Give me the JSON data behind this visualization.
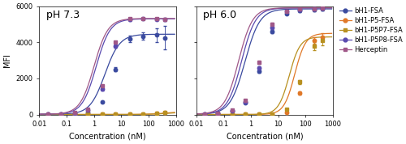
{
  "title_left": "pH 7.3",
  "title_right": "pH 6.0",
  "xlabel": "Concentration (nM)",
  "ylabel": "MFI",
  "ylim": [
    0,
    6000
  ],
  "yticks": [
    0,
    2000,
    4000,
    6000
  ],
  "xticks": [
    0.01,
    0.1,
    1,
    10,
    100,
    1000
  ],
  "xtick_labels": [
    "0.01",
    "0.1",
    "1",
    "10",
    "100",
    "1000"
  ],
  "legend_labels": [
    "bH1-FSA",
    "bH1-P5-FSA",
    "bH1-P5P7-FSA",
    "bH1-P5P8-FSA",
    "Herceptin"
  ],
  "colors": {
    "bH1-FSA": "#3A4A9F",
    "bH1-P5-FSA": "#E07828",
    "bH1-P5P7-FSA": "#B89020",
    "bH1-P5P8-FSA": "#5A4AAF",
    "Herceptin": "#A05888"
  },
  "markers": {
    "bH1-FSA": "o",
    "bH1-P5-FSA": "o",
    "bH1-P5P7-FSA": "s",
    "bH1-P5P8-FSA": "o",
    "Herceptin": "s"
  },
  "panel_left": {
    "bH1-FSA": {
      "x": [
        0.02,
        0.06,
        0.2,
        0.6,
        2,
        6,
        20,
        60,
        200,
        400
      ],
      "y": [
        20,
        30,
        50,
        100,
        700,
        2500,
        4200,
        4350,
        4400,
        4250
      ],
      "yerr": [
        8,
        8,
        15,
        25,
        60,
        120,
        180,
        220,
        380,
        650
      ],
      "ec50": 2.5,
      "ymax": 4450,
      "ymin": 15,
      "hill": 1.6
    },
    "bH1-P5-FSA": {
      "x": [
        0.02,
        0.06,
        0.2,
        0.6,
        2,
        6,
        20,
        60,
        200,
        400
      ],
      "y": [
        5,
        6,
        8,
        10,
        12,
        15,
        20,
        35,
        80,
        120
      ],
      "yerr": [
        2,
        2,
        2,
        3,
        3,
        4,
        5,
        6,
        10,
        15
      ],
      "ec50": 500,
      "ymax": 180,
      "ymin": 5,
      "hill": 1.2
    },
    "bH1-P5P7-FSA": {
      "x": [
        0.02,
        0.06,
        0.2,
        0.6,
        2,
        6,
        20,
        60,
        200,
        400
      ],
      "y": [
        5,
        6,
        8,
        10,
        12,
        14,
        18,
        30,
        65,
        110
      ],
      "yerr": [
        2,
        2,
        2,
        3,
        3,
        3,
        5,
        6,
        9,
        14
      ],
      "ec50": 600,
      "ymax": 150,
      "ymin": 5,
      "hill": 1.2
    },
    "bH1-P5P8-FSA": {
      "x": [
        0.02,
        0.06,
        0.2,
        0.6,
        2,
        6,
        20,
        60,
        200,
        400
      ],
      "y": [
        25,
        40,
        90,
        250,
        1400,
        3800,
        5250,
        5300,
        5280,
        5250
      ],
      "yerr": [
        5,
        8,
        15,
        25,
        60,
        80,
        50,
        50,
        60,
        80
      ],
      "ec50": 1.2,
      "ymax": 5300,
      "ymin": 20,
      "hill": 1.7
    },
    "Herceptin": {
      "x": [
        0.02,
        0.06,
        0.2,
        0.6,
        2,
        6,
        20,
        60,
        200,
        400
      ],
      "y": [
        28,
        45,
        100,
        280,
        1600,
        4000,
        5300,
        5320,
        5310,
        5290
      ],
      "yerr": [
        5,
        8,
        15,
        25,
        60,
        70,
        45,
        45,
        50,
        60
      ],
      "ec50": 1.0,
      "ymax": 5320,
      "ymin": 22,
      "hill": 1.7
    }
  },
  "panel_right": {
    "bH1-FSA": {
      "x": [
        0.02,
        0.06,
        0.2,
        0.6,
        2,
        6,
        20,
        60,
        200,
        400
      ],
      "y": [
        25,
        60,
        200,
        650,
        2400,
        4600,
        5600,
        5750,
        5800,
        5850
      ],
      "yerr": [
        5,
        10,
        20,
        40,
        80,
        100,
        60,
        60,
        70,
        90
      ],
      "ec50": 0.6,
      "ymax": 5850,
      "ymin": 20,
      "hill": 1.6
    },
    "bH1-P5-FSA": {
      "x": [
        0.02,
        0.06,
        0.2,
        0.6,
        2,
        6,
        20,
        60,
        200,
        400
      ],
      "y": [
        5,
        7,
        10,
        13,
        18,
        30,
        120,
        1200,
        4100,
        4300
      ],
      "yerr": [
        2,
        2,
        3,
        3,
        4,
        6,
        15,
        80,
        180,
        200
      ],
      "ec50": 40,
      "ymax": 4500,
      "ymin": 5,
      "hill": 2.2
    },
    "bH1-P5P7-FSA": {
      "x": [
        0.02,
        0.06,
        0.2,
        0.6,
        2,
        6,
        20,
        60,
        200,
        400
      ],
      "y": [
        5,
        7,
        10,
        13,
        18,
        45,
        280,
        1800,
        3800,
        4100
      ],
      "yerr": [
        2,
        2,
        3,
        3,
        4,
        7,
        25,
        100,
        220,
        250
      ],
      "ec50": 25,
      "ymax": 4300,
      "ymin": 5,
      "hill": 2.2
    },
    "bH1-P5P8-FSA": {
      "x": [
        0.02,
        0.06,
        0.2,
        0.6,
        2,
        6,
        20,
        60,
        200,
        400
      ],
      "y": [
        28,
        65,
        220,
        700,
        2600,
        4800,
        5700,
        5820,
        5860,
        5900
      ],
      "yerr": [
        5,
        10,
        20,
        40,
        80,
        90,
        55,
        55,
        60,
        75
      ],
      "ec50": 0.45,
      "ymax": 5900,
      "ymin": 22,
      "hill": 1.7
    },
    "Herceptin": {
      "x": [
        0.02,
        0.06,
        0.2,
        0.6,
        2,
        6,
        20,
        60,
        200,
        400
      ],
      "y": [
        32,
        75,
        250,
        800,
        2900,
        5000,
        5720,
        5830,
        5870,
        5900
      ],
      "yerr": [
        5,
        10,
        22,
        45,
        75,
        90,
        50,
        50,
        55,
        70
      ],
      "ec50": 0.35,
      "ymax": 5910,
      "ymin": 25,
      "hill": 1.7
    }
  },
  "background_color": "#ffffff",
  "title_fontsize": 9,
  "label_fontsize": 7,
  "tick_fontsize": 6,
  "legend_fontsize": 6.0,
  "figsize": [
    5.0,
    1.78
  ],
  "dpi": 100
}
